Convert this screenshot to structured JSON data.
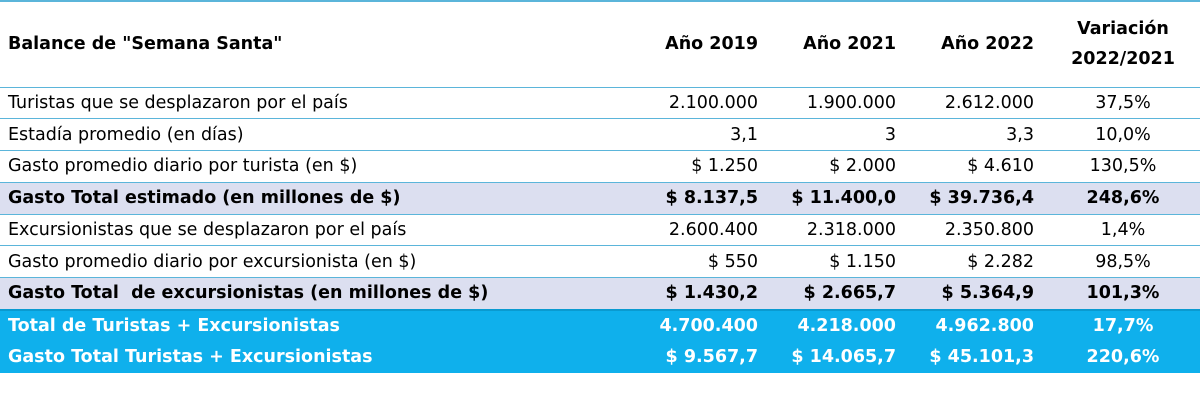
{
  "table": {
    "headers": {
      "label": "Balance de \"Semana Santa\"",
      "y2019": "Año 2019",
      "y2021": "Año 2021",
      "y2022": "Año 2022",
      "variation_line1": "Variación",
      "variation_line2": "2022/2021"
    },
    "rows": [
      {
        "label": "Turistas que se desplazaron por el país",
        "y2019": "2.100.000",
        "y2021": "1.900.000",
        "y2022": "2.612.000",
        "variation": "37,5%"
      },
      {
        "label": "Estadía promedio (en días)",
        "y2019": "3,1",
        "y2021": "3",
        "y2022": "3,3",
        "variation": "10,0%"
      },
      {
        "label": "Gasto promedio diario por turista (en $)",
        "y2019": "$ 1.250",
        "y2021": "$ 2.000",
        "y2022": "$ 4.610",
        "variation": "130,5%"
      },
      {
        "label": "Gasto Total estimado (en millones de $)",
        "y2019": "$ 8.137,5",
        "y2021": "$ 11.400,0",
        "y2022": "$ 39.736,4",
        "variation": "248,6%"
      },
      {
        "label": "Excursionistas que se desplazaron por el país",
        "y2019": "2.600.400",
        "y2021": "2.318.000",
        "y2022": "2.350.800",
        "variation": "1,4%"
      },
      {
        "label": "Gasto promedio diario por excursionista (en $)",
        "y2019": "$ 550",
        "y2021": "$ 1.150",
        "y2022": "$ 2.282",
        "variation": "98,5%"
      },
      {
        "label": "Gasto Total  de excursionistas (en millones de $)",
        "y2019": "$ 1.430,2",
        "y2021": "$ 2.665,7",
        "y2022": "$ 5.364,9",
        "variation": "101,3%"
      },
      {
        "label": "Total de Turistas + Excursionistas",
        "y2019": "4.700.400",
        "y2021": "4.218.000",
        "y2022": "4.962.800",
        "variation": "17,7%"
      },
      {
        "label": "Gasto Total Turistas + Excursionistas",
        "y2019": "$ 9.567,7",
        "y2021": "$ 14.065,7",
        "y2022": "$ 45.101,3",
        "variation": "220,6%"
      }
    ]
  },
  "colors": {
    "border": "#5bb5da",
    "total_row_bg": "#dcdff0",
    "grand_total_bg": "#0fb0ec",
    "grand_total_text": "#ffffff"
  }
}
